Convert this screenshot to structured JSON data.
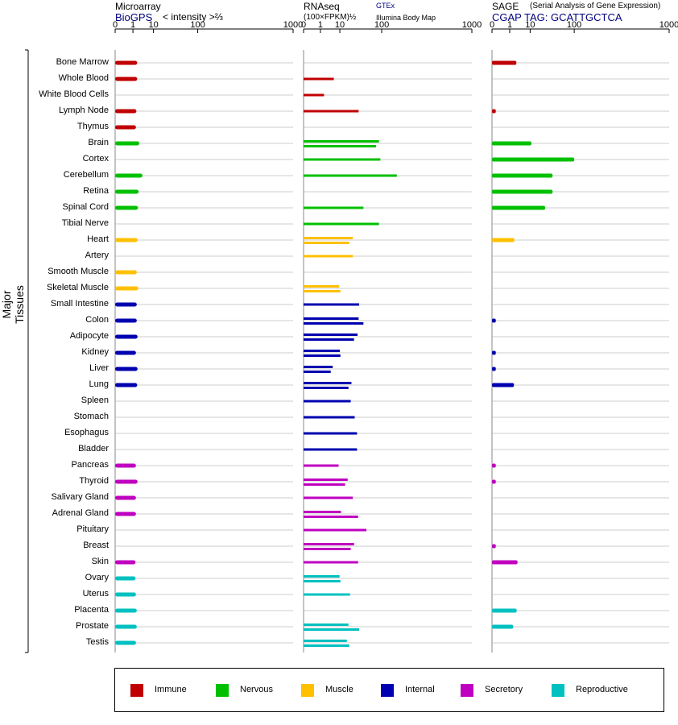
{
  "panels": [
    {
      "title": "Microarray",
      "source": "BioGPS",
      "unit": "< intensity >⅔"
    },
    {
      "title": "RNAseq",
      "unit": "(100×FPKM)½",
      "source": "GTEx",
      "source2": "Illumina Body Map"
    },
    {
      "title": "SAGE",
      "note": "(Serial Analysis of Gene Expression)",
      "source": "CGAP TAG: GCATTGCTCA"
    }
  ],
  "y_axis_title": "Major Tissues",
  "colors": {
    "Immune": "#c00000",
    "Nervous": "#00c000",
    "Muscle": "#ffc000",
    "Internal": "#0000b0",
    "Secretory": "#c000c0",
    "Reproductive": "#00c0c0"
  },
  "legend": [
    "Immune",
    "Nervous",
    "Muscle",
    "Internal",
    "Secretory",
    "Reproductive"
  ],
  "chart_data": {
    "type": "bar",
    "orientation": "horizontal",
    "x_scale": "power-transformed",
    "xlim": [
      0,
      1000
    ],
    "ticks": [
      0,
      1,
      10,
      100,
      1000
    ],
    "tissues": [
      {
        "name": "Bone Marrow",
        "group": "Immune",
        "microarray": 1.9,
        "gtex": null,
        "ibm": null,
        "sage": 2.6
      },
      {
        "name": "Whole Blood",
        "group": "Immune",
        "microarray": 1.9,
        "gtex": 5.8,
        "ibm": null,
        "sage": null
      },
      {
        "name": "White Blood Cells",
        "group": "Immune",
        "microarray": null,
        "gtex": null,
        "ibm": 1.8,
        "sage": null
      },
      {
        "name": "Lymph Node",
        "group": "Immune",
        "microarray": 1.7,
        "gtex": null,
        "ibm": 35,
        "sage": 0.01
      },
      {
        "name": "Thymus",
        "group": "Immune",
        "microarray": 1.6,
        "gtex": null,
        "ibm": null,
        "sage": null
      },
      {
        "name": "Brain",
        "group": "Nervous",
        "microarray": 2.5,
        "gtex": 90,
        "ibm": 80,
        "sage": 11
      },
      {
        "name": "Cortex",
        "group": "Nervous",
        "microarray": null,
        "gtex": 95,
        "ibm": null,
        "sage": 100
      },
      {
        "name": "Cerebellum",
        "group": "Nervous",
        "microarray": 3.6,
        "gtex": 170,
        "ibm": null,
        "sage": 40
      },
      {
        "name": "Retina",
        "group": "Nervous",
        "microarray": 2.3,
        "gtex": null,
        "ibm": null,
        "sage": 40
      },
      {
        "name": "Spinal Cord",
        "group": "Nervous",
        "microarray": 2.1,
        "gtex": 45,
        "ibm": null,
        "sage": 27
      },
      {
        "name": "Tibial Nerve",
        "group": "Nervous",
        "microarray": null,
        "gtex": 90,
        "ibm": null,
        "sage": null
      },
      {
        "name": "Heart",
        "group": "Muscle",
        "microarray": 2.0,
        "gtex": 25,
        "ibm": 20,
        "sage": 2.0
      },
      {
        "name": "Artery",
        "group": "Muscle",
        "microarray": null,
        "gtex": 25,
        "ibm": null,
        "sage": null
      },
      {
        "name": "Smooth Muscle",
        "group": "Muscle",
        "microarray": 1.8,
        "gtex": null,
        "ibm": null,
        "sage": null
      },
      {
        "name": "Skeletal Muscle",
        "group": "Muscle",
        "microarray": 2.2,
        "gtex": 9.5,
        "ibm": 10.5,
        "sage": null
      },
      {
        "name": "Small Intestine",
        "group": "Internal",
        "microarray": 1.8,
        "gtex": 36,
        "ibm": null,
        "sage": null
      },
      {
        "name": "Colon",
        "group": "Internal",
        "microarray": 1.8,
        "gtex": 35,
        "ibm": 45,
        "sage": 0.01
      },
      {
        "name": "Adipocyte",
        "group": "Internal",
        "microarray": 2.0,
        "gtex": 33,
        "ibm": 27,
        "sage": null
      },
      {
        "name": "Kidney",
        "group": "Internal",
        "microarray": 1.6,
        "gtex": 10,
        "ibm": 10.5,
        "sage": 0.01
      },
      {
        "name": "Liver",
        "group": "Internal",
        "microarray": 2.0,
        "gtex": 5.2,
        "ibm": 4.2,
        "sage": 0.01
      },
      {
        "name": "Lung",
        "group": "Internal",
        "microarray": 1.9,
        "gtex": 23,
        "ibm": 19,
        "sage": 1.9
      },
      {
        "name": "Spleen",
        "group": "Internal",
        "microarray": null,
        "gtex": 22,
        "ibm": null,
        "sage": null
      },
      {
        "name": "Stomach",
        "group": "Internal",
        "microarray": null,
        "gtex": 28,
        "ibm": null,
        "sage": null
      },
      {
        "name": "Esophagus",
        "group": "Internal",
        "microarray": null,
        "gtex": 32,
        "ibm": null,
        "sage": null
      },
      {
        "name": "Bladder",
        "group": "Internal",
        "microarray": null,
        "gtex": 32,
        "ibm": null,
        "sage": null
      },
      {
        "name": "Pancreas",
        "group": "Secretory",
        "microarray": 1.6,
        "gtex": 9,
        "ibm": null,
        "sage": 0.01
      },
      {
        "name": "Thyroid",
        "group": "Secretory",
        "microarray": 2.0,
        "gtex": 18,
        "ibm": 15,
        "sage": 0.01
      },
      {
        "name": "Salivary Gland",
        "group": "Secretory",
        "microarray": 1.6,
        "gtex": 25,
        "ibm": null,
        "sage": null
      },
      {
        "name": "Adrenal Gland",
        "group": "Secretory",
        "microarray": 1.6,
        "gtex": 11,
        "ibm": 34,
        "sage": null
      },
      {
        "name": "Pituitary",
        "group": "Secretory",
        "microarray": null,
        "gtex": 52,
        "ibm": null,
        "sage": null
      },
      {
        "name": "Breast",
        "group": "Secretory",
        "microarray": null,
        "gtex": 27,
        "ibm": 22,
        "sage": 0.01
      },
      {
        "name": "Skin",
        "group": "Secretory",
        "microarray": 1.5,
        "gtex": 34,
        "ibm": null,
        "sage": 3.0
      },
      {
        "name": "Ovary",
        "group": "Reproductive",
        "microarray": 1.5,
        "gtex": 9.8,
        "ibm": 10.5,
        "sage": null
      },
      {
        "name": "Uterus",
        "group": "Reproductive",
        "microarray": 1.6,
        "gtex": 21,
        "ibm": null,
        "sage": null
      },
      {
        "name": "Placenta",
        "group": "Reproductive",
        "microarray": 1.8,
        "gtex": null,
        "ibm": null,
        "sage": 2.7
      },
      {
        "name": "Prostate",
        "group": "Reproductive",
        "microarray": 1.8,
        "gtex": 19,
        "ibm": 36,
        "sage": 1.7
      },
      {
        "name": "Testis",
        "group": "Reproductive",
        "microarray": 1.6,
        "gtex": 17,
        "ibm": 20,
        "sage": null
      }
    ]
  }
}
